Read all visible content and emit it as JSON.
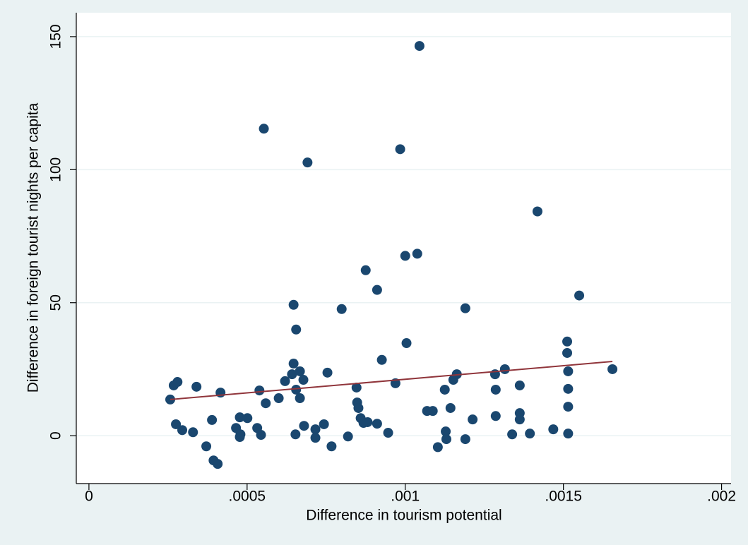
{
  "chart_data": {
    "type": "scatter",
    "xlabel": "Difference in tourism potential",
    "ylabel": "Difference in foreign tourist nights per capita",
    "xlim": [
      -4e-05,
      0.00203
    ],
    "ylim": [
      -18,
      159
    ],
    "xticks": [
      0,
      {
        "value": 0.0005,
        "label": ".0005"
      },
      {
        "value": 0.001,
        "label": ".001"
      },
      {
        "value": 0.0015,
        "label": ".0015"
      },
      {
        "value": 0.002,
        "label": ".002"
      }
    ],
    "yticks": [
      0,
      50,
      100,
      150
    ],
    "grid": true,
    "series": [
      {
        "color": "#1a476f",
        "x": [
          0.000257,
          0.000268,
          0.00028,
          0.000275,
          0.000295,
          0.000329,
          0.00034,
          0.000371,
          0.000389,
          0.000394,
          0.000407,
          0.000416,
          0.000465,
          0.000477,
          0.000477,
          0.000479,
          0.000501,
          0.000532,
          0.000539,
          0.000544,
          0.000553,
          0.000559,
          0.0006,
          0.00062,
          0.000642,
          0.000647,
          0.000647,
          0.000653,
          0.000655,
          0.000655,
          0.000667,
          0.000667,
          0.000678,
          0.00068,
          0.000691,
          0.000716,
          0.000716,
          0.000743,
          0.000754,
          0.000767,
          0.000799,
          0.000819,
          0.000846,
          0.000848,
          0.000852,
          0.000859,
          0.000868,
          0.000875,
          0.000881,
          0.000911,
          0.000911,
          0.000926,
          0.000946,
          0.000969,
          0.000984,
          0.001,
          0.001004,
          0.001038,
          0.001045,
          0.001069,
          0.001087,
          0.001103,
          0.001125,
          0.001128,
          0.00113,
          0.001143,
          0.001152,
          0.001163,
          0.00119,
          0.00119,
          0.001213,
          0.001284,
          0.001286,
          0.001286,
          0.001315,
          0.001338,
          0.001362,
          0.001362,
          0.001362,
          0.001394,
          0.001418,
          0.001468,
          0.001512,
          0.001512,
          0.001515,
          0.001515,
          0.001515,
          0.001515,
          0.00155,
          0.001655
        ],
        "values": [
          13.6,
          18.9,
          20.2,
          4.3,
          2.1,
          1.3,
          18.4,
          -4.0,
          5.9,
          -9.3,
          -10.6,
          16.2,
          2.9,
          -0.5,
          6.9,
          0.5,
          6.6,
          2.9,
          17.0,
          0.3,
          115.4,
          12.2,
          14.1,
          20.5,
          23.1,
          49.2,
          27.1,
          0.5,
          39.9,
          17.3,
          24.2,
          14.1,
          21.0,
          3.7,
          102.7,
          2.4,
          -0.8,
          4.3,
          23.7,
          -4.0,
          47.6,
          -0.3,
          18.1,
          12.5,
          10.4,
          6.6,
          4.8,
          62.2,
          5.1,
          54.8,
          4.5,
          28.5,
          1.1,
          19.7,
          107.7,
          67.6,
          34.8,
          68.4,
          146.5,
          9.3,
          9.3,
          -4.3,
          17.3,
          1.6,
          -1.3,
          10.4,
          21.0,
          23.1,
          47.9,
          -1.3,
          6.1,
          23.1,
          7.4,
          17.3,
          25.0,
          0.5,
          18.9,
          8.5,
          6.1,
          0.8,
          84.3,
          2.4,
          35.4,
          31.1,
          24.2,
          17.6,
          10.9,
          0.8,
          52.7,
          25.0
        ]
      }
    ],
    "fit_line": {
      "color": "#90353b",
      "x": [
        0.000257,
        0.001655
      ],
      "values": [
        13.6,
        27.9
      ]
    }
  }
}
